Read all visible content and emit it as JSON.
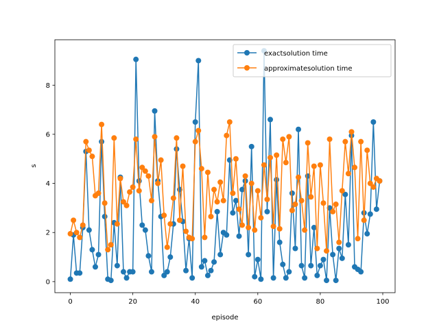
{
  "chart_data": {
    "type": "line",
    "title": "",
    "xlabel": "episode",
    "ylabel": "s",
    "xlim": [
      -4.95,
      103.95
    ],
    "ylim": [
      -0.45,
      9.85
    ],
    "xticks": [
      0,
      20,
      40,
      60,
      80,
      100
    ],
    "yticks": [
      0,
      2,
      4,
      6,
      8
    ],
    "grid": false,
    "legend": "top-right",
    "series": [
      {
        "name": "exactsolution time",
        "color": "#1f77b4",
        "marker": "circle",
        "values": [
          0.1,
          1.9,
          0.35,
          0.35,
          2.2,
          5.3,
          2.1,
          1.3,
          0.6,
          1.1,
          5.7,
          2.65,
          0.1,
          0.05,
          2.4,
          0.65,
          4.25,
          0.4,
          0.15,
          0.4,
          0.4,
          9.05,
          4.1,
          2.3,
          2.1,
          1.05,
          0.4,
          6.95,
          4.1,
          2.65,
          0.25,
          0.4,
          1.0,
          2.35,
          5.4,
          3.75,
          2.45,
          0.45,
          1.75,
          0.15,
          6.5,
          9.0,
          0.6,
          0.85,
          0.25,
          0.45,
          0.8,
          2.85,
          1.1,
          2.0,
          1.9,
          4.95,
          2.8,
          3.3,
          1.85,
          3.75,
          4.1,
          1.1,
          5.5,
          0.2,
          0.9,
          0.1,
          9.4,
          2.85,
          6.6,
          0.15,
          4.15,
          1.6,
          0.7,
          0.15,
          0.4,
          3.6,
          1.35,
          6.2,
          0.65,
          0.15,
          4.3,
          0.65,
          2.2,
          0.25,
          0.65,
          0.9,
          0.05,
          3.0,
          1.1,
          0.05,
          1.35,
          0.95,
          3.55,
          1.5,
          5.95,
          0.6,
          0.5,
          0.4,
          2.8,
          1.95,
          2.75,
          6.5,
          2.95,
          4.1
        ]
      },
      {
        "name": "approximatesolution time",
        "color": "#ff7f0e",
        "marker": "circle",
        "values": [
          1.95,
          2.5,
          2.0,
          1.8,
          2.3,
          5.7,
          5.35,
          5.1,
          3.5,
          3.6,
          6.4,
          3.2,
          1.3,
          1.5,
          5.85,
          2.35,
          4.2,
          3.25,
          3.1,
          3.65,
          3.85,
          5.8,
          3.7,
          4.65,
          4.5,
          4.3,
          3.3,
          5.9,
          4.0,
          4.95,
          2.7,
          1.4,
          2.35,
          3.4,
          5.85,
          2.5,
          4.7,
          2.05,
          1.8,
          1.75,
          5.7,
          6.15,
          4.6,
          1.8,
          4.45,
          2.65,
          3.75,
          3.25,
          4.05,
          3.3,
          5.95,
          6.5,
          3.6,
          5.0,
          2.95,
          2.3,
          4.3,
          2.2,
          4.0,
          2.1,
          3.7,
          2.6,
          4.75,
          3.35,
          5.05,
          2.25,
          5.15,
          2.15,
          5.8,
          4.85,
          5.9,
          2.9,
          3.15,
          4.25,
          3.3,
          2.1,
          5.65,
          3.45,
          4.7,
          1.35,
          4.75,
          3.2,
          1.25,
          5.8,
          2.85,
          3.15,
          1.6,
          3.7,
          5.7,
          4.4,
          6.1,
          4.65,
          1.75,
          5.7,
          2.5,
          5.35,
          4.0,
          3.85,
          4.2,
          4.1
        ]
      }
    ]
  }
}
